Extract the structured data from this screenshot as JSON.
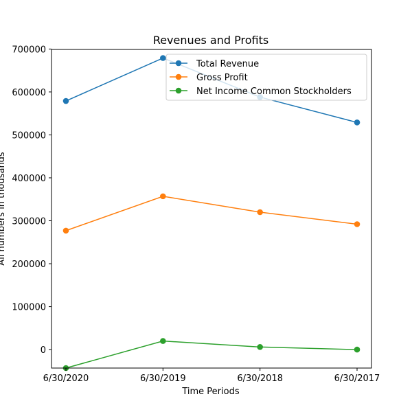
{
  "chart_data": {
    "type": "line",
    "title": "Revenues and Profits",
    "xlabel": "Time Periods",
    "ylabel": "All numbers in thousands",
    "categories": [
      "6/30/2020",
      "6/30/2019",
      "6/30/2018",
      "6/30/2017"
    ],
    "yticks": [
      0,
      100000,
      200000,
      300000,
      400000,
      500000,
      600000,
      700000
    ],
    "ylim": [
      -43000,
      699000
    ],
    "grid": false,
    "legend_position": "top-right",
    "series": [
      {
        "name": "Total Revenue",
        "color": "#1f77b4",
        "values": [
          579000,
          679000,
          588000,
          529000
        ]
      },
      {
        "name": "Gross Profit",
        "color": "#ff7f0e",
        "values": [
          277000,
          357000,
          320000,
          292000
        ]
      },
      {
        "name": "Net Income Common Stockholders",
        "color": "#2ca02c",
        "values": [
          -43000,
          20000,
          6000,
          0
        ]
      }
    ]
  }
}
